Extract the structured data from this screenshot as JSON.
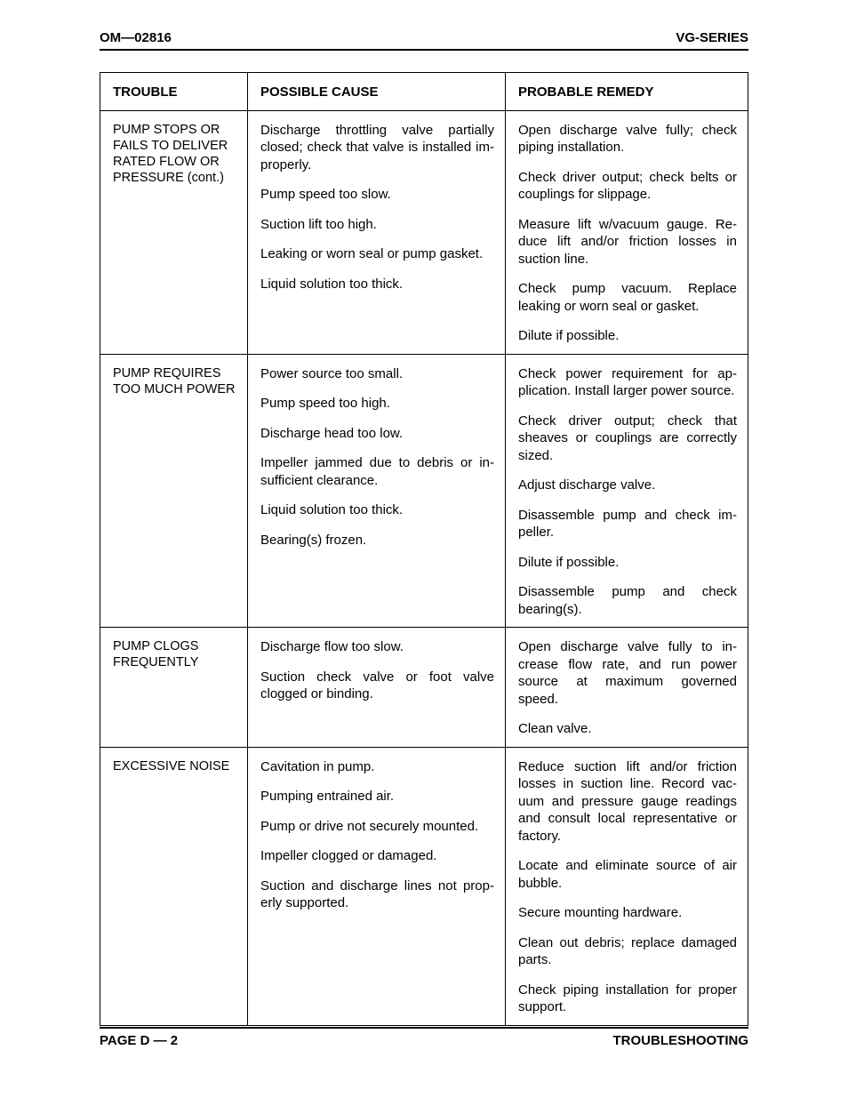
{
  "header": {
    "left": "OM—02816",
    "right": "VG-SERIES"
  },
  "footer": {
    "left": "PAGE D — 2",
    "right": "TROUBLESHOOTING"
  },
  "table": {
    "columns": [
      "TROUBLE",
      "POSSIBLE CAUSE",
      "PROBABLE REMEDY"
    ],
    "sections": [
      {
        "trouble": "PUMP STOPS OR FAILS TO DELIVER RATED FLOW OR PRESSURE (cont.)",
        "rows": [
          {
            "cause": "Discharge throttling valve partially closed; check that valve is installed im­properly.",
            "remedy": "Open discharge valve fully; check piping installation."
          },
          {
            "cause": "Pump speed too slow.",
            "remedy": "Check driver output; check belts or couplings for slippage."
          },
          {
            "cause": "Suction lift too high.",
            "remedy": "Measure lift w/vacuum gauge. Re­duce lift and/or friction losses in suction line."
          },
          {
            "cause": "Leaking or worn seal or pump gasket.",
            "remedy": "Check pump vacuum. Replace leaking or worn seal or gasket."
          },
          {
            "cause": "Liquid solution too thick.",
            "remedy": "Dilute if possible."
          }
        ]
      },
      {
        "trouble": "PUMP REQUIRES TOO MUCH POWER",
        "rows": [
          {
            "cause": "Power source too small.",
            "remedy": "Check power requirement for ap­plication. Install larger power source."
          },
          {
            "cause": "Pump speed too high.",
            "remedy": "Check driver output; check that sheaves or couplings are cor­rectly sized."
          },
          {
            "cause": "Discharge head too low.",
            "remedy": "Adjust discharge valve."
          },
          {
            "cause": "Impeller jammed due to debris or in­sufficient clearance.",
            "remedy": "Disassemble pump and check im­peller."
          },
          {
            "cause": "Liquid solution too thick.",
            "remedy": "Dilute if possible."
          },
          {
            "cause": "Bearing(s) frozen.",
            "remedy": "Disassemble pump and check bearing(s)."
          }
        ]
      },
      {
        "trouble": "PUMP CLOGS FREQUENTLY",
        "rows": [
          {
            "cause": "Discharge flow too slow.",
            "remedy": "Open discharge valve fully to in­crease flow rate, and run power source at maximum governed speed."
          },
          {
            "cause": "Suction check valve or foot valve clogged or binding.",
            "remedy": "Clean valve."
          }
        ]
      },
      {
        "trouble": "EXCESSIVE NOISE",
        "last": true,
        "rows": [
          {
            "cause": "Cavitation in pump.",
            "remedy": "Reduce suction lift and/or friction losses in suction line. Record vac­uum and pressure gauge readings and consult local representative or factory."
          },
          {
            "cause": "Pumping entrained air.",
            "remedy": "Locate and eliminate source of air bubble."
          },
          {
            "cause": "Pump or drive not securely mounted.",
            "remedy": "Secure mounting hardware."
          },
          {
            "cause": "Impeller clogged or damaged.",
            "remedy": "Clean out debris; replace dam­aged parts."
          },
          {
            "cause": "Suction and discharge lines not prop­erly supported.",
            "remedy": "Check piping installation for proper support."
          }
        ]
      }
    ]
  }
}
